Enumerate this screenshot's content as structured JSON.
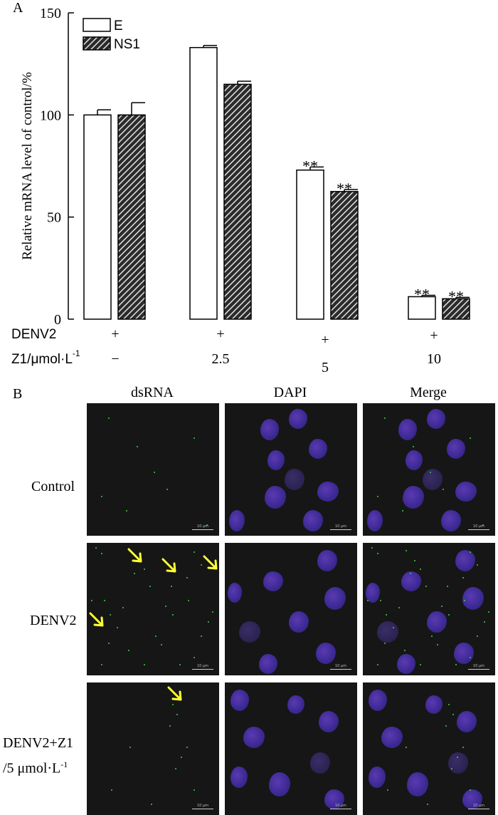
{
  "panel_a_label": "A",
  "panel_b_label": "B",
  "chart_data": {
    "type": "bar",
    "ylabel": "Relative mRNA level of control/%",
    "ylim": [
      0,
      150
    ],
    "yticks": [
      "0",
      "50",
      "100",
      "150"
    ],
    "categories": [
      "DENV2 −",
      "2.5",
      "5",
      "10"
    ],
    "series": [
      {
        "name": "E",
        "values": [
          100,
          133,
          73,
          11
        ],
        "errors": [
          2.5,
          1,
          1.5,
          0.7
        ],
        "fill": "#ffffff"
      },
      {
        "name": "NS1",
        "values": [
          100,
          115,
          62.5,
          10
        ],
        "errors": [
          6,
          1.5,
          1,
          0.7
        ],
        "fill": "hatched"
      }
    ],
    "significance": [
      [
        "",
        ""
      ],
      [
        "",
        ""
      ],
      [
        "**",
        "**"
      ],
      [
        "**",
        "**"
      ]
    ],
    "legend": {
      "placement": "top-left",
      "entries": [
        "E",
        "NS1"
      ]
    },
    "rows": [
      {
        "label": "DENV2",
        "values": [
          "+",
          "+",
          "+",
          "+"
        ]
      },
      {
        "label": "Z1/μmol·L",
        "superscript": "-1",
        "values": [
          "−",
          "2.5",
          "5",
          "10"
        ]
      }
    ],
    "grid": false
  },
  "micrographs": {
    "columns": [
      "dsRNA",
      "DAPI",
      "Merge"
    ],
    "rows": [
      {
        "label": "Control"
      },
      {
        "label": "DENV2"
      },
      {
        "label_line1": "DENV2+Z1",
        "label_line2": "/5 μmol·L",
        "label_sup": "-1"
      }
    ],
    "scale_bar_text": "10 μm",
    "colors": {
      "dsRNA": "#39d24a",
      "DAPI": "#4b2fa8",
      "arrow": "#ffff33",
      "background": "#161616"
    }
  }
}
